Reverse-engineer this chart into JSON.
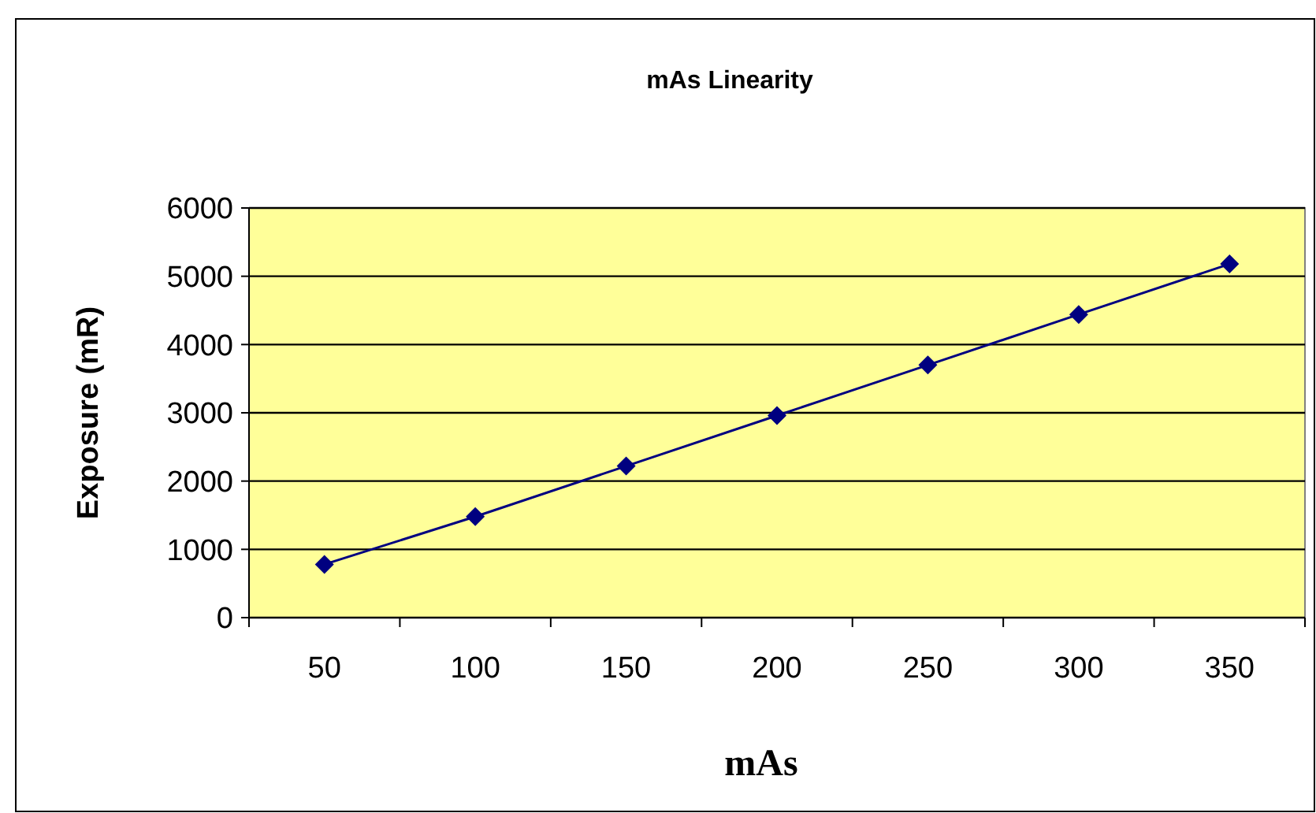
{
  "chart_data": {
    "type": "line",
    "title": "mAs Linearity",
    "xlabel": "mAs",
    "ylabel": "Exposure (mR)",
    "categories": [
      "50",
      "100",
      "150",
      "200",
      "250",
      "300",
      "350"
    ],
    "series": [
      {
        "color": "#000080",
        "values": [
          780,
          1480,
          2220,
          2960,
          3700,
          4440,
          5180
        ]
      }
    ],
    "ylim": [
      0,
      6000
    ],
    "yticks": [
      0,
      1000,
      2000,
      3000,
      4000,
      5000,
      6000
    ],
    "grid": "y",
    "marker": "diamond",
    "line_style": "solid"
  }
}
